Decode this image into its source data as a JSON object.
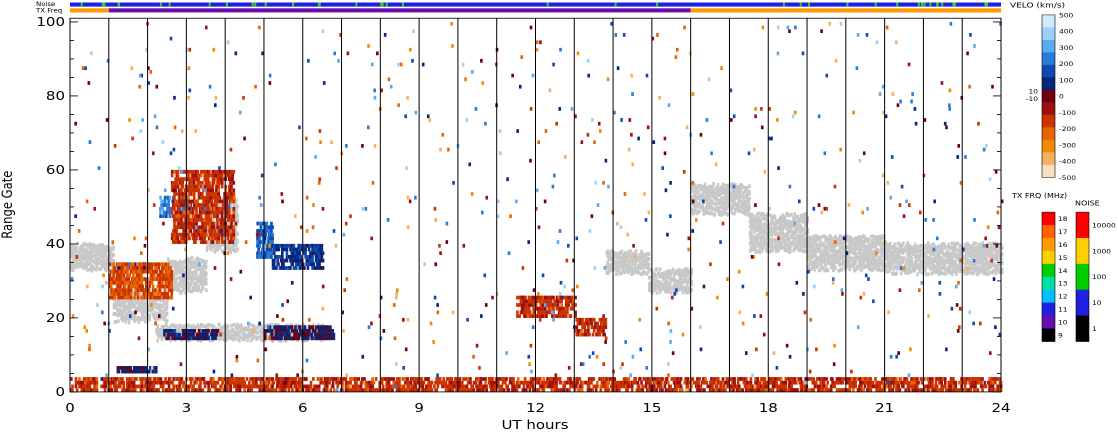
{
  "chart_data": {
    "type": "heatmap",
    "xlabel": "UT hours",
    "ylabel": "Range Gate",
    "xlim": [
      0,
      24
    ],
    "ylim": [
      0,
      101
    ],
    "x_ticks": [
      0,
      3,
      6,
      9,
      12,
      15,
      18,
      21,
      24
    ],
    "y_ticks": [
      0,
      20,
      40,
      60,
      80,
      100
    ],
    "scan_boundaries_ut": [
      1,
      2,
      3,
      4,
      5,
      6,
      7,
      8,
      9,
      10,
      11,
      12,
      13,
      14,
      15,
      16,
      17,
      18,
      19,
      20,
      21,
      22,
      23
    ],
    "top_bars": {
      "noise_label": "Noise",
      "txfreq_label": "TX Freq",
      "noise_color": "#2020e0",
      "noise_blips_color": "#33cc33",
      "txfreq_segments": [
        {
          "start": 0,
          "end": 1,
          "color": "#ff9900"
        },
        {
          "start": 1,
          "end": 16,
          "color": "#6a0dad"
        },
        {
          "start": 16,
          "end": 24,
          "color": "#ff9900"
        }
      ]
    },
    "ground_scatter_color": "#c8c8c8",
    "ground_scatter_bands": [
      {
        "t0": 0.0,
        "t1": 1.1,
        "g0": 33,
        "g1": 40
      },
      {
        "t0": 1.1,
        "t1": 2.5,
        "g0": 19,
        "g1": 27
      },
      {
        "t0": 2.5,
        "t1": 3.5,
        "g0": 27,
        "g1": 36
      },
      {
        "t0": 3.5,
        "t1": 4.3,
        "g0": 38,
        "g1": 52
      },
      {
        "t0": 2.2,
        "t1": 6.5,
        "g0": 14,
        "g1": 18
      },
      {
        "t0": 13.8,
        "t1": 14.9,
        "g0": 32,
        "g1": 38
      },
      {
        "t0": 14.9,
        "t1": 16.0,
        "g0": 27,
        "g1": 33
      },
      {
        "t0": 16.0,
        "t1": 17.5,
        "g0": 48,
        "g1": 56
      },
      {
        "t0": 17.5,
        "t1": 19.0,
        "g0": 38,
        "g1": 48
      },
      {
        "t0": 19.0,
        "t1": 21.0,
        "g0": 33,
        "g1": 42
      },
      {
        "t0": 21.0,
        "t1": 24.0,
        "g0": 32,
        "g1": 40
      }
    ],
    "velocity_patches": [
      {
        "t0": 2.3,
        "t1": 3.1,
        "g0": 47,
        "g1": 53,
        "v": 250
      },
      {
        "t0": 4.8,
        "t1": 5.2,
        "g0": 36,
        "g1": 46,
        "v": 200
      },
      {
        "t0": 5.2,
        "t1": 6.5,
        "g0": 33,
        "g1": 40,
        "v": 100
      },
      {
        "t0": 2.4,
        "t1": 3.8,
        "g0": 14,
        "g1": 17,
        "v": 60
      },
      {
        "t0": 5.0,
        "t1": 6.8,
        "g0": 14,
        "g1": 18,
        "v": 60
      },
      {
        "t0": 1.2,
        "t1": 2.2,
        "g0": 5,
        "g1": 7,
        "v": 60
      },
      {
        "t0": 1.2,
        "t1": 2.0,
        "g0": 33,
        "g1": 35,
        "v": 60
      },
      {
        "t0": 11.5,
        "t1": 13.0,
        "g0": 20,
        "g1": 26,
        "v": -150
      },
      {
        "t0": 13.0,
        "t1": 13.8,
        "g0": 15,
        "g1": 20,
        "v": -150
      },
      {
        "t0": 1.0,
        "t1": 2.6,
        "g0": 25,
        "g1": 35,
        "v": -200
      },
      {
        "t0": 2.6,
        "t1": 4.2,
        "g0": 40,
        "g1": 60,
        "v": -150
      },
      {
        "t0": 0.0,
        "t1": 24.0,
        "g0": 0,
        "g1": 4,
        "v": -150
      }
    ],
    "velocity_colorbar": {
      "title": "VELO (km/s)",
      "tick_labels": [
        "500",
        "400",
        "300",
        "200",
        "100",
        "0",
        "-100",
        "-200",
        "-300",
        "-400",
        "-500"
      ],
      "side_labels": [
        "10",
        "-10"
      ],
      "colors": [
        "#d0eaff",
        "#9dd0fa",
        "#5aaaf0",
        "#2a7ad8",
        "#0f4ab0",
        "#05267a",
        "#6e0010",
        "#9e1010",
        "#cc3300",
        "#e86400",
        "#f08a00",
        "#f6b060",
        "#fbe0c0"
      ]
    },
    "txfreq_colorbar": {
      "title": "TX FRQ (MHz)",
      "tick_labels": [
        "18",
        "17",
        "16",
        "15",
        "14",
        "13",
        "12",
        "11",
        "10",
        "9"
      ],
      "colors": [
        "#ff0000",
        "#ff6000",
        "#ff9900",
        "#ffd000",
        "#00cc00",
        "#00e0a0",
        "#00c0ff",
        "#2020e0",
        "#6a0dad",
        "#000000"
      ]
    },
    "noise_colorbar": {
      "title": "NOISE",
      "tick_labels": [
        "10000",
        "1000",
        "100",
        "10",
        "1"
      ],
      "colors": [
        "#ff0000",
        "#ffd000",
        "#00cc00",
        "#2020e0",
        "#000000"
      ]
    }
  }
}
